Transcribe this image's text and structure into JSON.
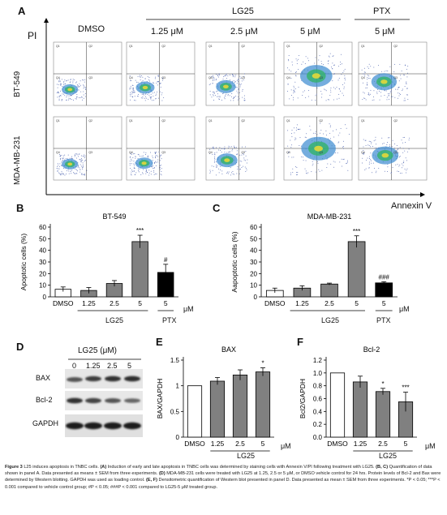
{
  "panelA": {
    "letter": "A",
    "pi_label": "PI",
    "annexin_label": "Annexin V",
    "group_lg25": "LG25",
    "group_ptx": "PTX",
    "columns": [
      "DMSO",
      "1.25 μM",
      "2.5 μM",
      "5 μM",
      "5 μM"
    ],
    "rows": [
      "BT-549",
      "MDA-MB-231"
    ],
    "quadrant_labels": [
      "Q1",
      "Q2",
      "Q3",
      "Q4"
    ]
  },
  "panelB": {
    "letter": "B",
    "unit": "μM",
    "group_lg25": "LG25",
    "group_ptx": "PTX"
  },
  "panelC": {
    "letter": "C",
    "unit": "μM",
    "group_lg25": "LG25",
    "group_ptx": "PTX"
  },
  "panelD": {
    "letter": "D",
    "title": "LG25 (μM)",
    "concentrations": [
      "0",
      "1.25",
      "2.5",
      "5"
    ],
    "proteins": [
      "BAX",
      "Bcl-2",
      "GAPDH"
    ]
  },
  "panelE": {
    "letter": "E",
    "unit": "μM",
    "group": "LG25"
  },
  "panelF": {
    "letter": "F",
    "unit": "μM",
    "group": "LG25"
  },
  "chart_data": [
    {
      "id": "B",
      "type": "bar",
      "title": "BT-549",
      "ylabel": "Apoptotic cells (%)",
      "ylim": [
        0,
        60
      ],
      "yticks": [
        0,
        10,
        20,
        30,
        40,
        50,
        60
      ],
      "categories": [
        "DMSO",
        "1.25",
        "2.5",
        "5",
        "5"
      ],
      "values": [
        6.5,
        5.5,
        11.5,
        47.5,
        21
      ],
      "errors": [
        2,
        2.5,
        2.5,
        5.5,
        7
      ],
      "colors": [
        "#ffffff",
        "#808080",
        "#808080",
        "#808080",
        "#000000"
      ],
      "significance": [
        "",
        "",
        "",
        "***",
        "#"
      ]
    },
    {
      "id": "C",
      "type": "bar",
      "title": "MDA-MB-231",
      "ylabel": "Aapoptotic cells (%)",
      "ylim": [
        0,
        60
      ],
      "yticks": [
        0,
        10,
        20,
        30,
        40,
        50,
        60
      ],
      "categories": [
        "DMSO",
        "1.25",
        "2.5",
        "5",
        "5"
      ],
      "values": [
        5.5,
        7.5,
        11,
        47.5,
        12
      ],
      "errors": [
        2,
        2,
        0.8,
        5,
        1
      ],
      "colors": [
        "#ffffff",
        "#808080",
        "#808080",
        "#808080",
        "#000000"
      ],
      "significance": [
        "",
        "",
        "",
        "***",
        "###"
      ]
    },
    {
      "id": "E",
      "type": "bar",
      "title": "BAX",
      "ylabel": "BAX/GAPDH",
      "ylim": [
        0,
        1.5
      ],
      "yticks": [
        0,
        0.5,
        1.0,
        1.5
      ],
      "ytick_labels": [
        "0",
        "0.5",
        "1",
        "1.5"
      ],
      "categories": [
        "DMSO",
        "1.25",
        "2.5",
        "5"
      ],
      "values": [
        1.0,
        1.09,
        1.21,
        1.27
      ],
      "errors": [
        0,
        0.07,
        0.1,
        0.08
      ],
      "colors": [
        "#ffffff",
        "#808080",
        "#808080",
        "#808080"
      ],
      "significance": [
        "",
        "",
        "",
        "*"
      ]
    },
    {
      "id": "F",
      "type": "bar",
      "title": "Bcl-2",
      "ylabel": "Bcl2/GAPDH",
      "ylim": [
        0,
        1.2
      ],
      "yticks": [
        0,
        0.2,
        0.4,
        0.6,
        0.8,
        1.0,
        1.2
      ],
      "ytick_labels": [
        "0.0",
        "0.2",
        "0.4",
        "0.6",
        "0.8",
        "1.0",
        "1.2"
      ],
      "categories": [
        "DMSO",
        "1.25",
        "2.5",
        "5"
      ],
      "values": [
        1.0,
        0.86,
        0.71,
        0.55
      ],
      "errors": [
        0,
        0.09,
        0.05,
        0.15
      ],
      "colors": [
        "#ffffff",
        "#808080",
        "#808080",
        "#808080"
      ],
      "significance": [
        "",
        "",
        "*",
        "***"
      ]
    }
  ],
  "caption": {
    "fig": "Figure 3",
    "text1": " L25 induces apoptosis in TNBC cells. ",
    "a": "(A)",
    "text2": " Induction of early and late apoptosis in TNBC cells was determined by staining cells with Annexin V/PI following treatment with LG25. ",
    "bc": "(B, C)",
    "text3": " Quantification of data shown in panel A. Data presented as means ± SEM from three experiments. ",
    "d": "(D)",
    "text4": " MDA-MB-231 cells were treated with LG25 at 1.25, 2.5 or 5 μM, or DMSO vehicle control for 24 hrs. Protein levels of Bcl-2 and Bax were determined by Western blotting. GAPDH was used as loading control. ",
    "ef": "(E, F)",
    "text5": " Densitometric quantification of Western blot presented in panel D. Data presented as mean ± SEM from three experiments. *P < 0.05; ***P < 0.001 compared to vehicle control group; #P < 0.05; ###P < 0.001 compared to LG25-5 μM treated group."
  }
}
